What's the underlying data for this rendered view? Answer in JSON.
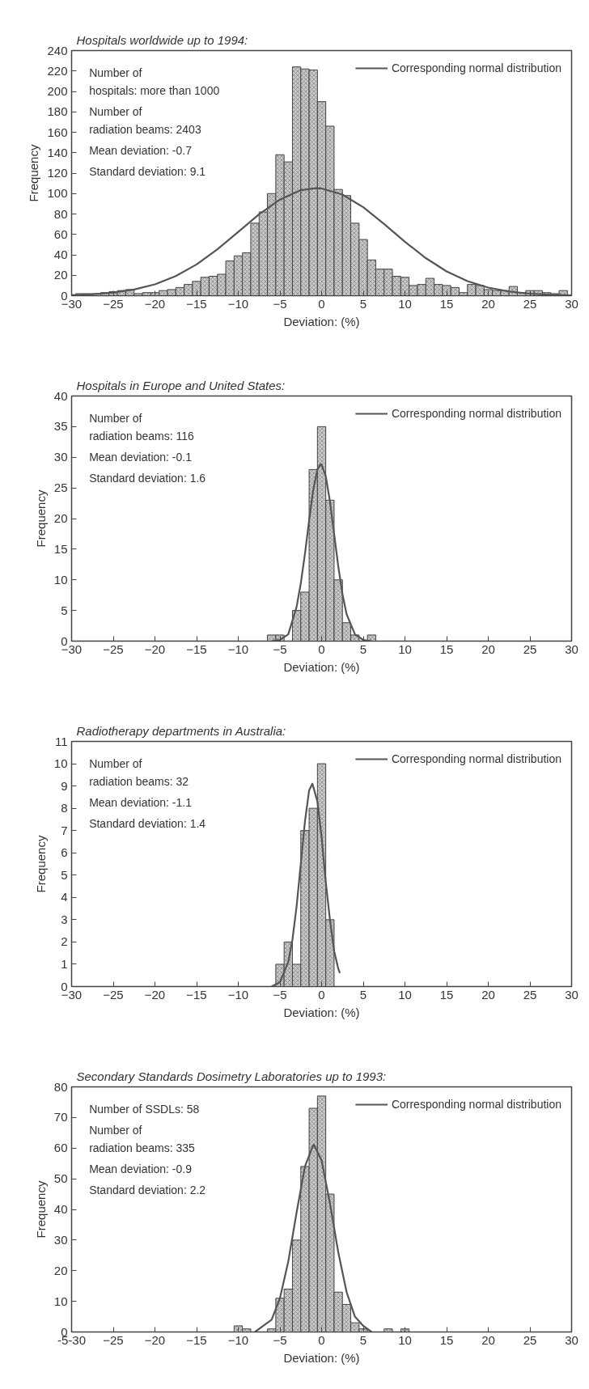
{
  "chart_data": [
    {
      "type": "histogram",
      "title": "Hospitals worldwide up to 1994:",
      "xlabel": "Deviation: (%)",
      "ylabel": "Frequency",
      "color": "#c8c8c8",
      "legend": "top right",
      "grid": false,
      "annotations": [
        "Number of\nhospitals: more than 1000",
        "Number of\nradiation beams: 2403",
        "Mean deviation: -0.7",
        "Standard deviation: 9.1"
      ],
      "bins": [
        -29.5,
        -28.5,
        -27.5,
        -26.5,
        -25.5,
        -24.5,
        -23.5,
        -22.5,
        -21.5,
        -20.5,
        -19.5,
        -18.5,
        -17.5,
        -16.5,
        -15.5,
        -14.5,
        -13.5,
        -12.5,
        -11.5,
        -10.5,
        -9.5,
        -8.5,
        -7.5,
        -6.5,
        -5.5,
        -4.5,
        -3.5,
        -2.5,
        -1.5,
        -0.5,
        0.5,
        1.5,
        2.5,
        3.5,
        4.5,
        5.5,
        6.5,
        7.5,
        8.5,
        9.5,
        10.5,
        11.5,
        12.5,
        13.5,
        14.5,
        15.5,
        16.5,
        17.5,
        18.5,
        19.5,
        20.5,
        21.5,
        22.5,
        23.5,
        24.5,
        25.5,
        26.5,
        27.5,
        28.5,
        29.5
      ],
      "values": [
        2,
        2,
        2,
        3,
        4,
        5,
        6,
        2,
        3,
        3,
        5,
        6,
        8,
        11,
        14,
        18,
        19,
        21,
        34,
        39,
        42,
        71,
        82,
        100,
        138,
        131,
        224,
        222,
        221,
        190,
        166,
        104,
        98,
        71,
        55,
        35,
        26,
        26,
        19,
        18,
        10,
        11,
        17,
        11,
        10,
        8,
        3,
        11,
        10,
        6,
        5,
        5,
        9,
        3,
        5,
        5,
        3,
        2,
        5
      ],
      "xlim": [
        -30,
        30
      ],
      "xticks": [
        -30,
        -25,
        -20,
        -15,
        -10,
        -5,
        0,
        5,
        10,
        15,
        20,
        25,
        30
      ],
      "ylim": [
        0,
        240
      ],
      "yticks": [
        0,
        20,
        40,
        60,
        80,
        100,
        120,
        140,
        160,
        180,
        200,
        220,
        240
      ],
      "series": [
        {
          "type": "line",
          "name": "Corresponding normal distribution",
          "color": "#555555",
          "x": [
            -30,
            -27.5,
            -25,
            -22.5,
            -20,
            -17.5,
            -15,
            -12.5,
            -10,
            -7.5,
            -5,
            -2.5,
            -0.7,
            0,
            2.5,
            5,
            7.5,
            10,
            12.5,
            15,
            17.5,
            20,
            22.5,
            25,
            27.5,
            30
          ],
          "values": [
            0.6,
            1.4,
            3.0,
            6.0,
            11.1,
            19.2,
            30.6,
            45.4,
            62.5,
            79.7,
            94.1,
            103.3,
            105.3,
            105.0,
            99.0,
            86.6,
            70.2,
            52.8,
            36.8,
            23.8,
            14.3,
            7.9,
            4.1,
            2.0,
            0.9,
            0.4
          ]
        }
      ]
    },
    {
      "type": "histogram",
      "title": "Hospitals in Europe and United States:",
      "xlabel": "Deviation: (%)",
      "ylabel": "Frequency",
      "color": "#c8c8c8",
      "legend": "top right",
      "grid": false,
      "annotations": [
        "Number of\nradiation beams: 116",
        "Mean deviation: -0.1",
        "Standard deviation: 1.6"
      ],
      "bins": [
        -6.5,
        -5.5,
        -4.5,
        -3.5,
        -2.5,
        -1.5,
        -0.5,
        0.5,
        1.5,
        2.5,
        3.5,
        4.5,
        5.5,
        6.5
      ],
      "values": [
        1,
        1,
        0,
        5,
        8,
        28,
        35,
        23,
        10,
        3,
        1,
        0,
        1
      ],
      "xlim": [
        -30,
        30
      ],
      "xticks": [
        -30,
        -25,
        -20,
        -15,
        -10,
        -5,
        0,
        5,
        10,
        15,
        20,
        25,
        30
      ],
      "ylim": [
        0,
        40
      ],
      "yticks": [
        0,
        5,
        10,
        15,
        20,
        25,
        30,
        35,
        40
      ],
      "series": [
        {
          "type": "line",
          "name": "Corresponding normal distribution",
          "color": "#555555",
          "x": [
            -6,
            -5,
            -4,
            -3,
            -2.5,
            -2,
            -1.5,
            -1,
            -0.5,
            -0.1,
            0,
            0.5,
            1,
            1.5,
            2,
            2.5,
            3,
            4,
            5,
            6
          ],
          "values": [
            0,
            0.2,
            1.1,
            5.6,
            9.4,
            14.2,
            19.7,
            24.7,
            28.0,
            28.9,
            28.8,
            26.9,
            22.8,
            17.5,
            12.2,
            7.7,
            4.4,
            1.1,
            0.2,
            0
          ]
        }
      ]
    },
    {
      "type": "histogram",
      "title": "Radiotherapy departments in Australia:",
      "xlabel": "Deviation: (%)",
      "ylabel": "Frequency",
      "color": "#c8c8c8",
      "legend": "top right",
      "grid": false,
      "annotations": [
        "Number of\nradiation beams: 32",
        "Mean deviation: -1.1",
        "Standard deviation: 1.4"
      ],
      "bins": [
        -5.5,
        -4.5,
        -3.5,
        -2.5,
        -1.5,
        -0.5,
        0.5,
        1.5
      ],
      "values": [
        1,
        2,
        1,
        7,
        8,
        10,
        3
      ],
      "xlim": [
        -30,
        30
      ],
      "xticks": [
        -30,
        -25,
        -20,
        -15,
        -10,
        -5,
        0,
        5,
        10,
        15,
        20,
        25,
        30
      ],
      "ylim": [
        0,
        11
      ],
      "yticks": [
        0,
        1,
        2,
        3,
        4,
        5,
        6,
        7,
        8,
        9,
        10,
        11
      ],
      "series": [
        {
          "type": "line",
          "name": "Corresponding normal distribution",
          "color": "#555555",
          "x": [
            -6,
            -5,
            -4,
            -3.5,
            -3,
            -2.5,
            -2,
            -1.5,
            -1.1,
            -0.5,
            0,
            0.5,
            1,
            1.5,
            2,
            2.2
          ],
          "values": [
            0,
            0.2,
            1.1,
            2.1,
            3.6,
            5.5,
            7.4,
            8.8,
            9.1,
            8.3,
            6.7,
            4.7,
            3.0,
            1.6,
            0.8,
            0.6
          ]
        }
      ]
    },
    {
      "type": "histogram",
      "title": "Secondary Standards Dosimetry Laboratories up to 1993:",
      "xlabel": "Deviation: (%)",
      "ylabel": "Frequency",
      "color": "#c8c8c8",
      "legend": "top right",
      "grid": false,
      "annotations": [
        "Number of SSDLs: 58",
        "Number of\nradiation beams: 335",
        "Mean deviation: -0.9",
        "Standard deviation: 2.2"
      ],
      "bins": [
        -10.5,
        -9.5,
        -8.5,
        -7.5,
        -6.5,
        -5.5,
        -4.5,
        -3.5,
        -2.5,
        -1.5,
        -0.5,
        0.5,
        1.5,
        2.5,
        3.5,
        4.5,
        5.5,
        6.5,
        7.5,
        8.5,
        9.5,
        10.5
      ],
      "values": [
        2,
        1,
        0,
        0,
        1,
        11,
        14,
        30,
        54,
        73,
        77,
        45,
        13,
        9,
        3,
        1,
        0,
        0,
        1,
        0,
        1
      ],
      "xlim": [
        -30,
        30
      ],
      "xticks": [
        {
          "value": -30,
          "label": "-5-30"
        },
        -25,
        -20,
        -15,
        -10,
        -5,
        0,
        5,
        10,
        15,
        20,
        25,
        30
      ],
      "ylim": [
        0,
        80
      ],
      "yticks": [
        0,
        10,
        20,
        30,
        40,
        50,
        60,
        70,
        80
      ],
      "series": [
        {
          "type": "line",
          "name": "Corresponding normal distribution",
          "color": "#555555",
          "x": [
            -8,
            -7,
            -6,
            -5,
            -4,
            -3,
            -2,
            -1,
            -0.9,
            0,
            1,
            2,
            3,
            4,
            5,
            6
          ],
          "values": [
            0,
            2,
            4,
            11,
            23,
            39,
            54,
            61,
            61,
            56,
            42,
            26,
            13,
            5,
            2,
            0
          ]
        }
      ]
    }
  ]
}
